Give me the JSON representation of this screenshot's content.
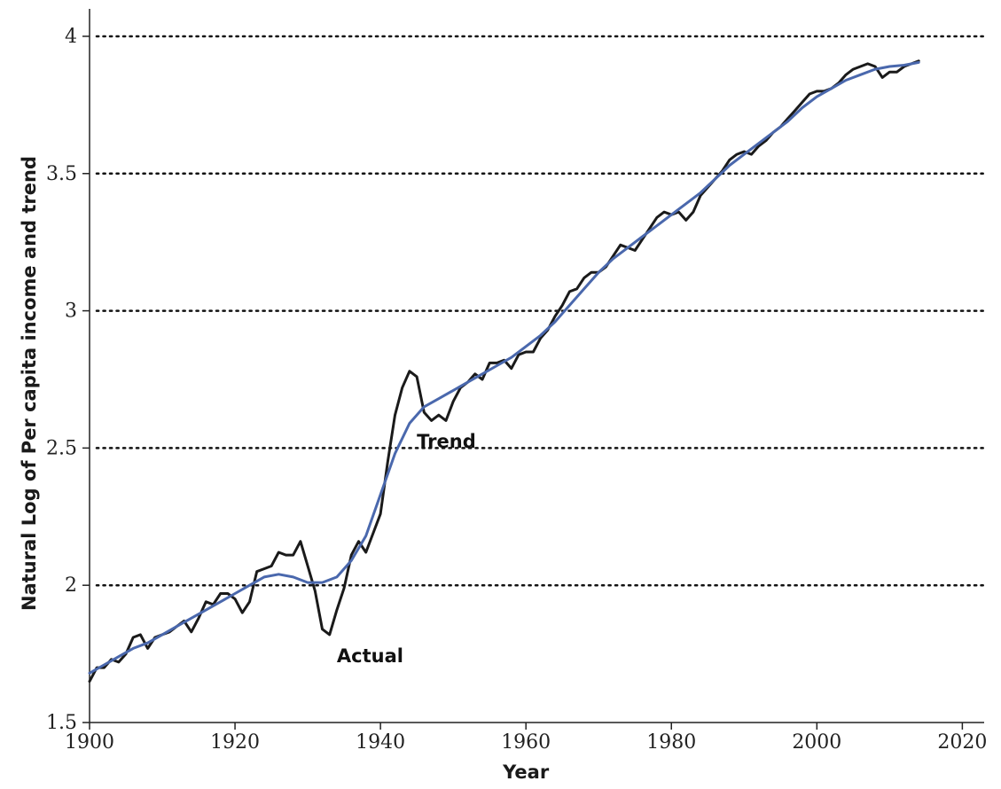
{
  "chart_data": {
    "type": "line",
    "title": "",
    "xlabel": "Year",
    "ylabel": "Natural Log of Per capita income and trend",
    "xlim": [
      1900,
      2023
    ],
    "ylim": [
      1.5,
      4.1
    ],
    "x_ticks": [
      "1900",
      "1920",
      "1940",
      "1960",
      "1980",
      "2000",
      "2020"
    ],
    "y_ticks": [
      "1.5",
      "2",
      "2.5",
      "3",
      "3.5",
      "4"
    ],
    "grid": "horizontal dotted at 2, 2.5, 3, 3.5, 4",
    "legend": "none (inline annotations)",
    "annotations": [
      {
        "text": "Trend",
        "x": 1945,
        "y": 2.54
      },
      {
        "text": "Actual",
        "x": 1934,
        "y": 1.81
      }
    ],
    "series": [
      {
        "label": "Actual",
        "color": "#1a1a1a",
        "points": [
          [
            1900,
            1.65
          ],
          [
            1901,
            1.7
          ],
          [
            1902,
            1.7
          ],
          [
            1903,
            1.73
          ],
          [
            1904,
            1.72
          ],
          [
            1905,
            1.75
          ],
          [
            1906,
            1.81
          ],
          [
            1907,
            1.82
          ],
          [
            1908,
            1.77
          ],
          [
            1909,
            1.81
          ],
          [
            1910,
            1.82
          ],
          [
            1911,
            1.83
          ],
          [
            1912,
            1.85
          ],
          [
            1913,
            1.87
          ],
          [
            1914,
            1.83
          ],
          [
            1915,
            1.88
          ],
          [
            1916,
            1.94
          ],
          [
            1917,
            1.93
          ],
          [
            1918,
            1.97
          ],
          [
            1919,
            1.97
          ],
          [
            1920,
            1.95
          ],
          [
            1921,
            1.9
          ],
          [
            1922,
            1.94
          ],
          [
            1923,
            2.05
          ],
          [
            1924,
            2.06
          ],
          [
            1925,
            2.07
          ],
          [
            1926,
            2.12
          ],
          [
            1927,
            2.11
          ],
          [
            1928,
            2.11
          ],
          [
            1929,
            2.16
          ],
          [
            1930,
            2.07
          ],
          [
            1931,
            1.98
          ],
          [
            1932,
            1.84
          ],
          [
            1933,
            1.82
          ],
          [
            1934,
            1.91
          ],
          [
            1935,
            1.99
          ],
          [
            1936,
            2.11
          ],
          [
            1937,
            2.16
          ],
          [
            1938,
            2.12
          ],
          [
            1939,
            2.19
          ],
          [
            1940,
            2.26
          ],
          [
            1941,
            2.45
          ],
          [
            1942,
            2.62
          ],
          [
            1943,
            2.72
          ],
          [
            1944,
            2.78
          ],
          [
            1945,
            2.76
          ],
          [
            1946,
            2.63
          ],
          [
            1947,
            2.6
          ],
          [
            1948,
            2.62
          ],
          [
            1949,
            2.6
          ],
          [
            1950,
            2.67
          ],
          [
            1951,
            2.72
          ],
          [
            1952,
            2.74
          ],
          [
            1953,
            2.77
          ],
          [
            1954,
            2.75
          ],
          [
            1955,
            2.81
          ],
          [
            1956,
            2.81
          ],
          [
            1957,
            2.82
          ],
          [
            1958,
            2.79
          ],
          [
            1959,
            2.84
          ],
          [
            1960,
            2.85
          ],
          [
            1961,
            2.85
          ],
          [
            1962,
            2.9
          ],
          [
            1963,
            2.93
          ],
          [
            1964,
            2.98
          ],
          [
            1965,
            3.02
          ],
          [
            1966,
            3.07
          ],
          [
            1967,
            3.08
          ],
          [
            1968,
            3.12
          ],
          [
            1969,
            3.14
          ],
          [
            1970,
            3.14
          ],
          [
            1971,
            3.16
          ],
          [
            1972,
            3.2
          ],
          [
            1973,
            3.24
          ],
          [
            1974,
            3.23
          ],
          [
            1975,
            3.22
          ],
          [
            1976,
            3.26
          ],
          [
            1977,
            3.3
          ],
          [
            1978,
            3.34
          ],
          [
            1979,
            3.36
          ],
          [
            1980,
            3.35
          ],
          [
            1981,
            3.36
          ],
          [
            1982,
            3.33
          ],
          [
            1983,
            3.36
          ],
          [
            1984,
            3.42
          ],
          [
            1985,
            3.45
          ],
          [
            1986,
            3.48
          ],
          [
            1987,
            3.51
          ],
          [
            1988,
            3.55
          ],
          [
            1989,
            3.57
          ],
          [
            1990,
            3.58
          ],
          [
            1991,
            3.57
          ],
          [
            1992,
            3.6
          ],
          [
            1993,
            3.62
          ],
          [
            1994,
            3.65
          ],
          [
            1995,
            3.67
          ],
          [
            1996,
            3.7
          ],
          [
            1997,
            3.73
          ],
          [
            1998,
            3.76
          ],
          [
            1999,
            3.79
          ],
          [
            2000,
            3.8
          ],
          [
            2001,
            3.8
          ],
          [
            2002,
            3.81
          ],
          [
            2003,
            3.83
          ],
          [
            2004,
            3.86
          ],
          [
            2005,
            3.88
          ],
          [
            2006,
            3.89
          ],
          [
            2007,
            3.9
          ],
          [
            2008,
            3.89
          ],
          [
            2009,
            3.85
          ],
          [
            2010,
            3.87
          ],
          [
            2011,
            3.87
          ],
          [
            2012,
            3.89
          ],
          [
            2013,
            3.9
          ],
          [
            2014,
            3.91
          ]
        ]
      },
      {
        "label": "Trend",
        "color": "#4a68ad",
        "points": [
          [
            1900,
            1.68
          ],
          [
            1902,
            1.71
          ],
          [
            1904,
            1.74
          ],
          [
            1906,
            1.77
          ],
          [
            1908,
            1.79
          ],
          [
            1910,
            1.82
          ],
          [
            1912,
            1.85
          ],
          [
            1914,
            1.88
          ],
          [
            1916,
            1.91
          ],
          [
            1918,
            1.94
          ],
          [
            1920,
            1.97
          ],
          [
            1922,
            2.0
          ],
          [
            1924,
            2.03
          ],
          [
            1926,
            2.04
          ],
          [
            1928,
            2.03
          ],
          [
            1930,
            2.01
          ],
          [
            1932,
            2.01
          ],
          [
            1934,
            2.03
          ],
          [
            1936,
            2.09
          ],
          [
            1938,
            2.18
          ],
          [
            1940,
            2.33
          ],
          [
            1942,
            2.48
          ],
          [
            1944,
            2.59
          ],
          [
            1946,
            2.65
          ],
          [
            1948,
            2.68
          ],
          [
            1950,
            2.71
          ],
          [
            1952,
            2.74
          ],
          [
            1954,
            2.77
          ],
          [
            1956,
            2.8
          ],
          [
            1958,
            2.83
          ],
          [
            1960,
            2.87
          ],
          [
            1962,
            2.91
          ],
          [
            1964,
            2.96
          ],
          [
            1966,
            3.02
          ],
          [
            1968,
            3.08
          ],
          [
            1970,
            3.14
          ],
          [
            1972,
            3.19
          ],
          [
            1974,
            3.23
          ],
          [
            1976,
            3.27
          ],
          [
            1978,
            3.31
          ],
          [
            1980,
            3.35
          ],
          [
            1982,
            3.39
          ],
          [
            1984,
            3.43
          ],
          [
            1986,
            3.48
          ],
          [
            1988,
            3.53
          ],
          [
            1990,
            3.57
          ],
          [
            1992,
            3.61
          ],
          [
            1994,
            3.65
          ],
          [
            1996,
            3.69
          ],
          [
            1998,
            3.74
          ],
          [
            2000,
            3.78
          ],
          [
            2002,
            3.81
          ],
          [
            2004,
            3.84
          ],
          [
            2006,
            3.86
          ],
          [
            2008,
            3.88
          ],
          [
            2010,
            3.89
          ],
          [
            2012,
            3.895
          ],
          [
            2014,
            3.905
          ]
        ]
      }
    ]
  }
}
